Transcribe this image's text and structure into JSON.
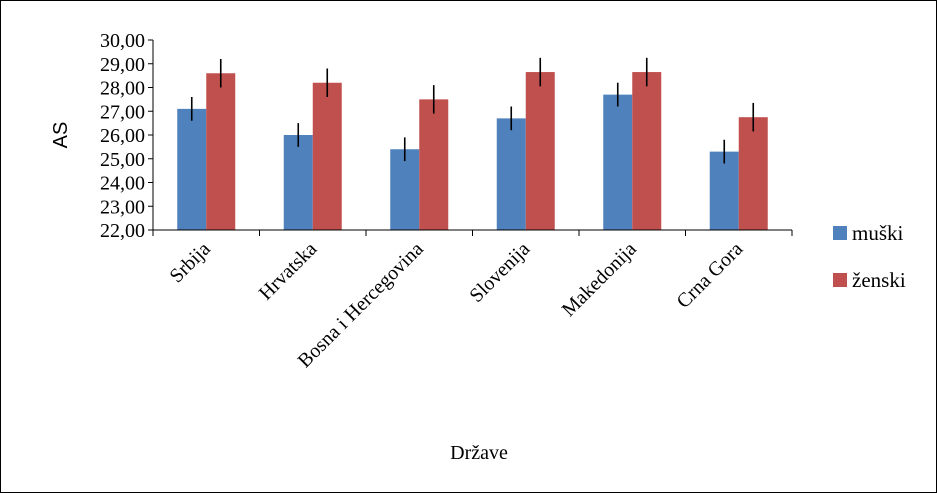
{
  "chart_data": {
    "type": "bar",
    "title": "",
    "xlabel": "Države",
    "ylabel": "AS",
    "ylim": [
      22,
      30
    ],
    "yticks": [
      "22,00",
      "23,00",
      "24,00",
      "25,00",
      "26,00",
      "27,00",
      "28,00",
      "29,00",
      "30,00"
    ],
    "categories": [
      "Srbija",
      "Hrvatska",
      "Bosna i Hercegovina",
      "Slovenija",
      "Makedonija",
      "Crna Gora"
    ],
    "series": [
      {
        "name": "muški",
        "color": "#4f81bd",
        "values": [
          27.1,
          26.0,
          25.4,
          26.7,
          27.7,
          25.3
        ],
        "error": [
          0.5,
          0.5,
          0.5,
          0.5,
          0.5,
          0.5
        ]
      },
      {
        "name": "ženski",
        "color": "#c0504d",
        "values": [
          28.6,
          28.2,
          27.5,
          28.65,
          28.65,
          26.75
        ],
        "error": [
          0.6,
          0.6,
          0.6,
          0.6,
          0.6,
          0.6
        ]
      }
    ],
    "legend_position": "right",
    "grid": false
  }
}
